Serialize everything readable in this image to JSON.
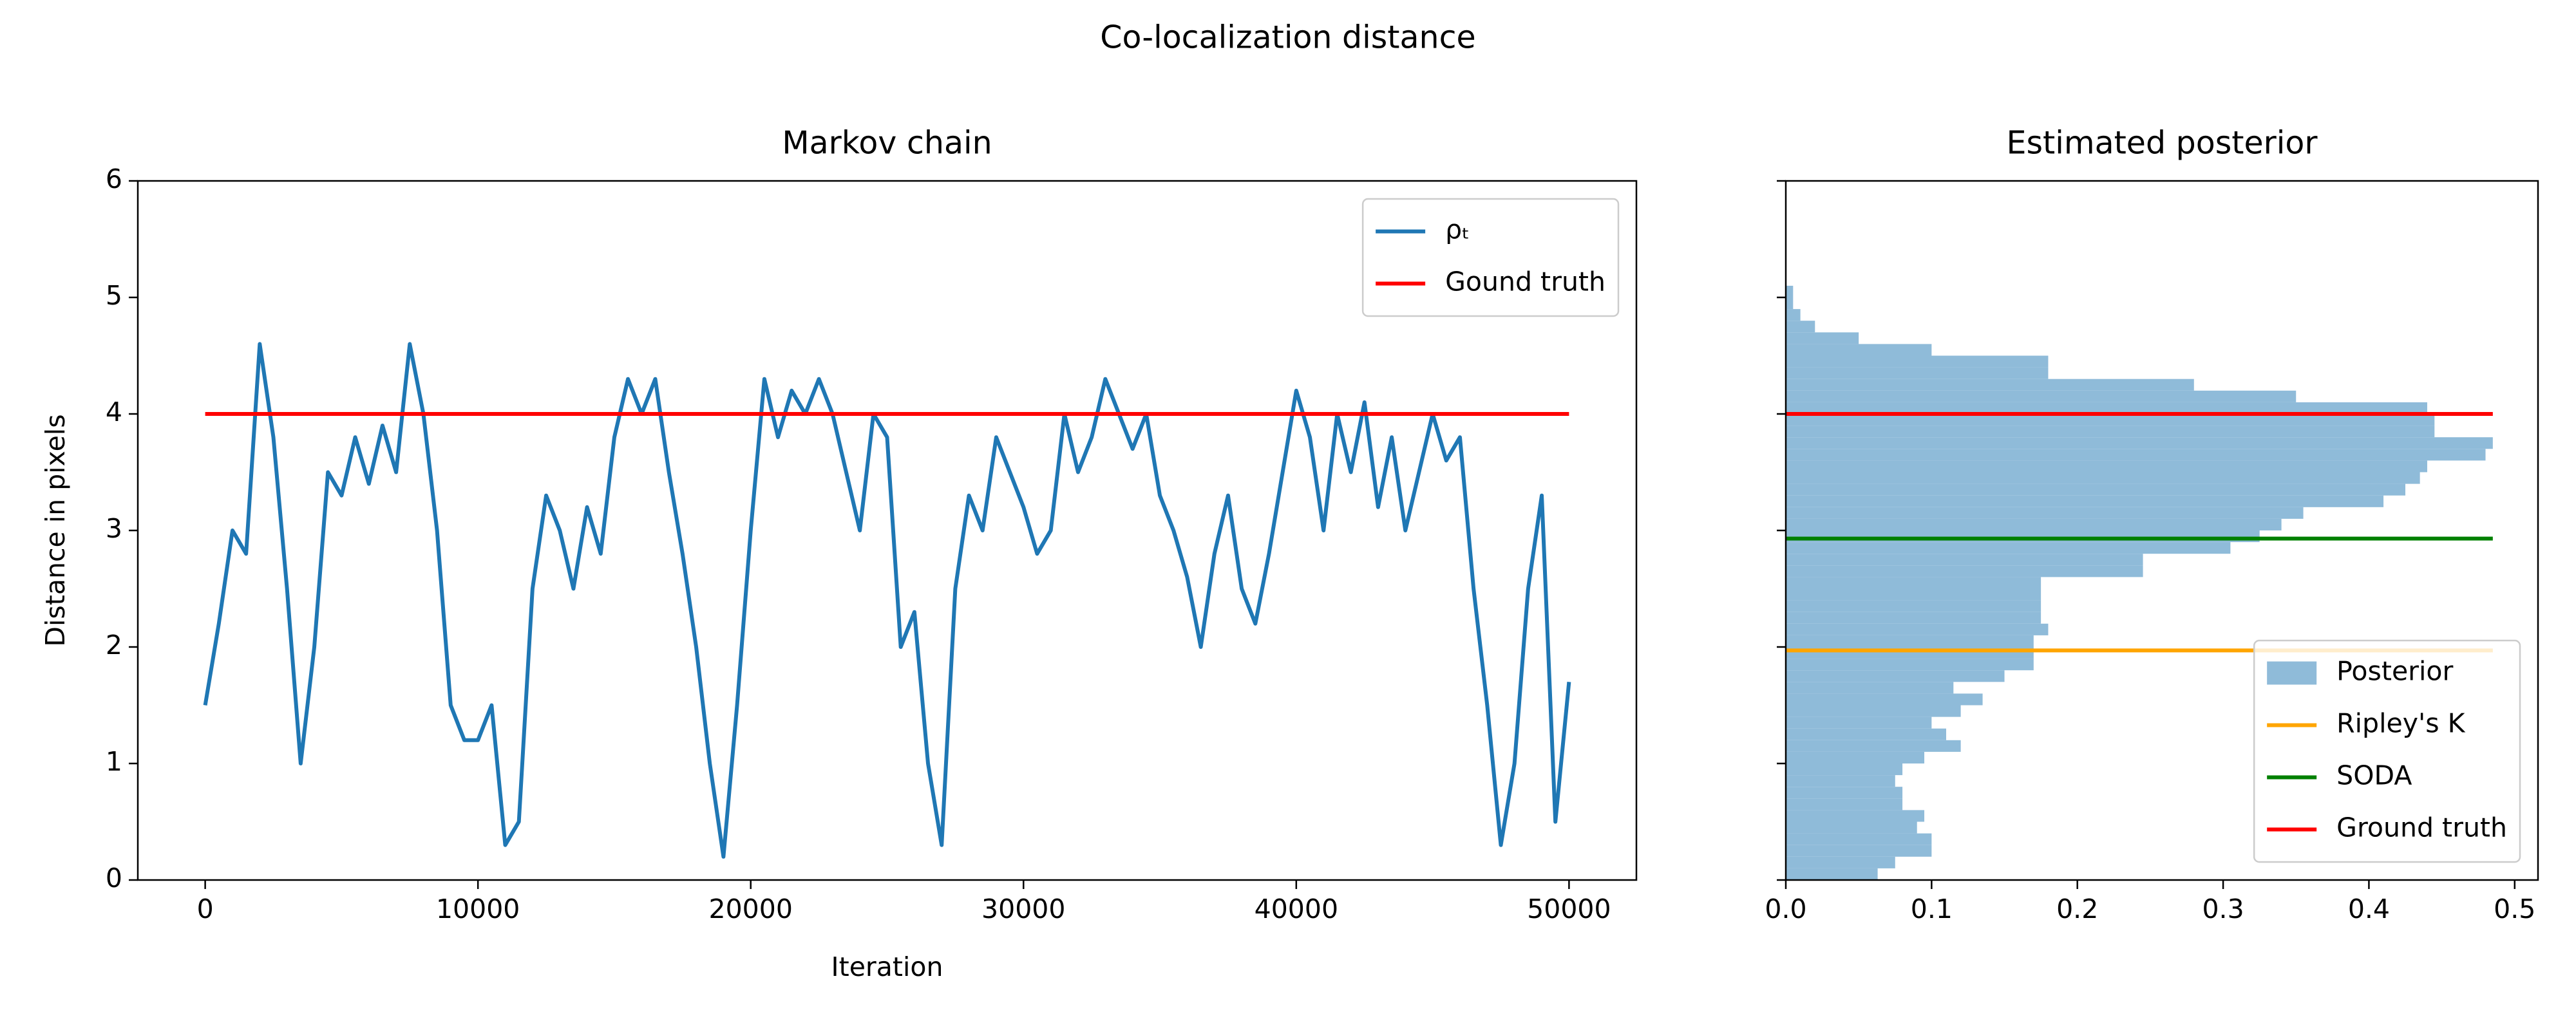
{
  "title": "Co-localization distance",
  "chart_data": [
    {
      "type": "line",
      "title": "Markov chain",
      "xlabel": "Iteration",
      "ylabel": "Distance in pixels",
      "xlim": [
        -2470,
        52470
      ],
      "ylim": [
        0,
        6
      ],
      "xticks": [
        0,
        10000,
        20000,
        30000,
        40000,
        50000
      ],
      "yticks": [
        0,
        1,
        2,
        3,
        4,
        5,
        6
      ],
      "x": [
        0,
        500,
        1000,
        1500,
        2000,
        2500,
        3000,
        3500,
        4000,
        4500,
        5000,
        5500,
        6000,
        6500,
        7000,
        7500,
        8000,
        8500,
        9000,
        9500,
        10000,
        10500,
        11000,
        11500,
        12000,
        12500,
        13000,
        13500,
        14000,
        14500,
        15000,
        15500,
        16000,
        16500,
        17000,
        17500,
        18000,
        18500,
        19000,
        19500,
        20000,
        20500,
        21000,
        21500,
        22000,
        22500,
        23000,
        23500,
        24000,
        24500,
        25000,
        25500,
        26000,
        26500,
        27000,
        27500,
        28000,
        28500,
        29000,
        29500,
        30000,
        30500,
        31000,
        31500,
        32000,
        32500,
        33000,
        33500,
        34000,
        34500,
        35000,
        35500,
        36000,
        36500,
        37000,
        37500,
        38000,
        38500,
        39000,
        39500,
        40000,
        40500,
        41000,
        41500,
        42000,
        42500,
        43000,
        43500,
        44000,
        44500,
        45000,
        45500,
        46000,
        46500,
        47000,
        47500,
        48000,
        48500,
        49000,
        49500,
        50000
      ],
      "series": [
        {
          "name": "ρₜ",
          "color": "#1f77b4",
          "values": [
            1.5,
            2.2,
            3.0,
            2.8,
            4.6,
            3.8,
            2.5,
            1.0,
            2.0,
            3.5,
            3.3,
            3.8,
            3.4,
            3.9,
            3.5,
            4.6,
            4.0,
            3.0,
            1.5,
            1.2,
            1.2,
            1.5,
            0.3,
            0.5,
            2.5,
            3.3,
            3.0,
            2.5,
            3.2,
            2.8,
            3.8,
            4.3,
            4.0,
            4.3,
            3.5,
            2.8,
            2.0,
            1.0,
            0.2,
            1.5,
            3.0,
            4.3,
            3.8,
            4.2,
            4.0,
            4.3,
            4.0,
            3.5,
            3.0,
            4.0,
            3.8,
            2.0,
            2.3,
            1.0,
            0.3,
            2.5,
            3.3,
            3.0,
            3.8,
            3.5,
            3.2,
            2.8,
            3.0,
            4.0,
            3.5,
            3.8,
            4.3,
            4.0,
            3.7,
            4.0,
            3.3,
            3.0,
            2.6,
            2.0,
            2.8,
            3.3,
            2.5,
            2.2,
            2.8,
            3.5,
            4.2,
            3.8,
            3.0,
            4.0,
            3.5,
            4.1,
            3.2,
            3.8,
            3.0,
            3.5,
            4.0,
            3.6,
            3.8,
            2.5,
            1.5,
            0.3,
            1.0,
            2.5,
            3.3,
            0.5,
            1.7
          ]
        }
      ],
      "hlines": [
        {
          "name": "Gound truth",
          "color": "#ff0000",
          "value": 4,
          "xmin": 0,
          "xmax": 50000
        }
      ],
      "legend": "upper right"
    },
    {
      "type": "hist",
      "title": "Estimated posterior",
      "orientation": "horizontal",
      "xlim": [
        0,
        0.516
      ],
      "ylim": [
        0,
        6
      ],
      "xticks": [
        {
          "value": 0,
          "label": "0.0"
        },
        0.1,
        0.2,
        0.3,
        0.4,
        0.5
      ],
      "yticks": [
        0,
        1,
        2,
        3,
        4,
        5,
        6
      ],
      "ytick_labels": false,
      "name": "Posterior",
      "color": "#8fbbd9",
      "bins": [
        0,
        0.1,
        0.2,
        0.3,
        0.4,
        0.5,
        0.6,
        0.7,
        0.8,
        0.9,
        1.0,
        1.1,
        1.2,
        1.3,
        1.4,
        1.5,
        1.6,
        1.7,
        1.8,
        1.9,
        2.0,
        2.1,
        2.2,
        2.3,
        2.4,
        2.5,
        2.6,
        2.7,
        2.8,
        2.9,
        3.0,
        3.1,
        3.2,
        3.3,
        3.4,
        3.5,
        3.6,
        3.7,
        3.8,
        3.9,
        4.0,
        4.1,
        4.2,
        4.3,
        4.4,
        4.5,
        4.6,
        4.7,
        4.8,
        4.9,
        5.0,
        5.1
      ],
      "counts": [
        0.063,
        0.075,
        0.1,
        0.1,
        0.09,
        0.095,
        0.08,
        0.08,
        0.075,
        0.08,
        0.095,
        0.12,
        0.11,
        0.1,
        0.12,
        0.135,
        0.115,
        0.15,
        0.17,
        0.17,
        0.17,
        0.18,
        0.175,
        0.175,
        0.175,
        0.175,
        0.245,
        0.245,
        0.305,
        0.325,
        0.34,
        0.355,
        0.41,
        0.425,
        0.435,
        0.44,
        0.48,
        0.485,
        0.445,
        0.445,
        0.44,
        0.35,
        0.28,
        0.18,
        0.18,
        0.1,
        0.05,
        0.02,
        0.01,
        0.005,
        0.005
      ],
      "hlines": [
        {
          "name": "Ripley's K",
          "color": "#ffa500",
          "value": 1.97,
          "xmin": 0,
          "xmax": 0.485
        },
        {
          "name": "SODA",
          "color": "#008000",
          "value": 2.93,
          "xmin": 0,
          "xmax": 0.485
        },
        {
          "name": "Ground truth",
          "color": "#ff0000",
          "value": 4,
          "xmin": 0,
          "xmax": 0.485
        }
      ],
      "legend": "lower right"
    }
  ]
}
